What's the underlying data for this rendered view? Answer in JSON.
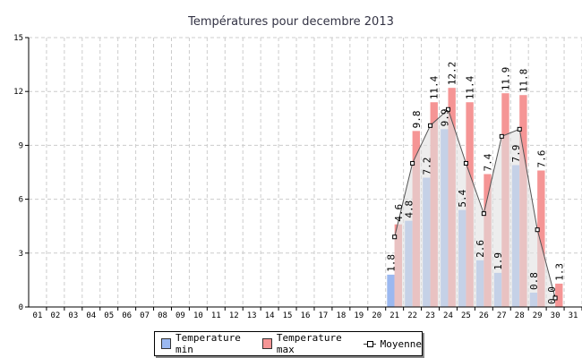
{
  "chart_data": {
    "type": "bar",
    "title": "Températures pour decembre 2013",
    "xlabel": "",
    "ylabel": "",
    "ylim": [
      0,
      15
    ],
    "yticks": [
      "0",
      "3",
      "6",
      "9",
      "12",
      "15"
    ],
    "categories": [
      "01",
      "02",
      "03",
      "04",
      "05",
      "06",
      "07",
      "08",
      "09",
      "10",
      "11",
      "12",
      "13",
      "14",
      "15",
      "16",
      "17",
      "18",
      "19",
      "20",
      "21",
      "22",
      "23",
      "24",
      "25",
      "26",
      "27",
      "28",
      "29",
      "30",
      "31"
    ],
    "series": [
      {
        "name": "Temperature min",
        "type": "bar",
        "color": "#9bb8f0",
        "values": [
          null,
          null,
          null,
          null,
          null,
          null,
          null,
          null,
          null,
          null,
          null,
          null,
          null,
          null,
          null,
          null,
          null,
          null,
          null,
          null,
          1.8,
          4.8,
          7.2,
          9.9,
          5.4,
          2.6,
          1.9,
          7.9,
          0.8,
          0.0,
          null
        ]
      },
      {
        "name": "Temperature max",
        "type": "bar",
        "color": "#f59595",
        "values": [
          null,
          null,
          null,
          null,
          null,
          null,
          null,
          null,
          null,
          null,
          null,
          null,
          null,
          null,
          null,
          null,
          null,
          null,
          null,
          null,
          4.6,
          9.8,
          11.4,
          12.2,
          11.4,
          7.4,
          11.9,
          11.8,
          7.6,
          1.3,
          null
        ]
      },
      {
        "name": "Moyenne",
        "type": "line",
        "color": "#555555",
        "values": [
          null,
          null,
          null,
          null,
          null,
          null,
          null,
          null,
          null,
          null,
          null,
          null,
          null,
          null,
          null,
          null,
          null,
          null,
          null,
          null,
          3.9,
          8.0,
          10.1,
          11.0,
          8.0,
          5.2,
          9.5,
          9.9,
          4.3,
          0.5,
          null
        ]
      }
    ],
    "grid": true,
    "legend": "bottom"
  }
}
